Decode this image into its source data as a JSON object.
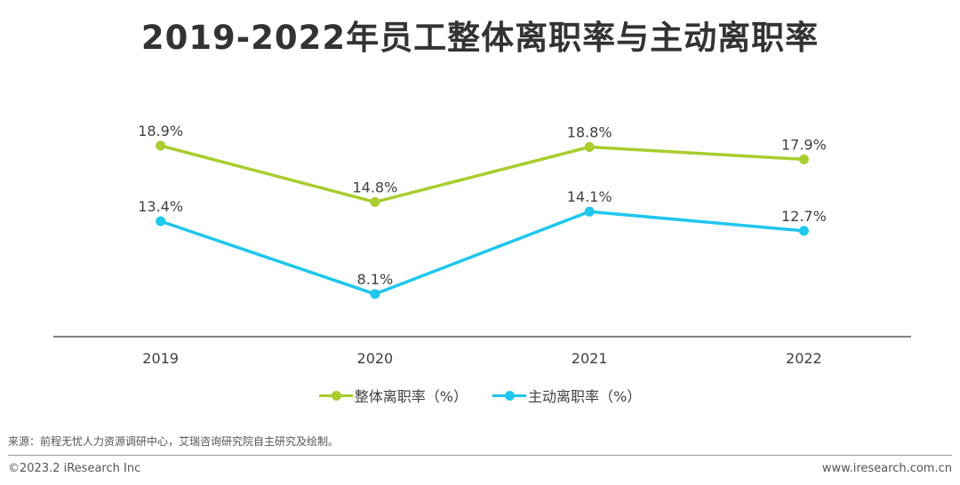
{
  "chart_data": {
    "type": "line",
    "title": "2019-2022年员工整体离职率与主动离职率",
    "categories": [
      "2019",
      "2020",
      "2021",
      "2022"
    ],
    "series": [
      {
        "name": "整体离职率（%）",
        "values": [
          18.9,
          14.8,
          18.8,
          17.9
        ],
        "labels": [
          "18.9%",
          "14.8%",
          "18.8%",
          "17.9%"
        ],
        "color": "#A9CC2E"
      },
      {
        "name": "主动离职率（%）",
        "values": [
          13.4,
          8.1,
          14.1,
          12.7
        ],
        "labels": [
          "13.4%",
          "8.1%",
          "14.1%",
          "12.7%"
        ],
        "color": "#1FC6EE"
      }
    ],
    "ylim": [
      5,
      22
    ],
    "grid": false,
    "legend": "bottom"
  },
  "footer": {
    "source": "来源：前程无忧人力资源调研中心，艾瑞咨询研究院自主研究及绘制。",
    "copyright": "©2023.2 iResearch Inc",
    "website": "www.iresearch.com.cn"
  }
}
